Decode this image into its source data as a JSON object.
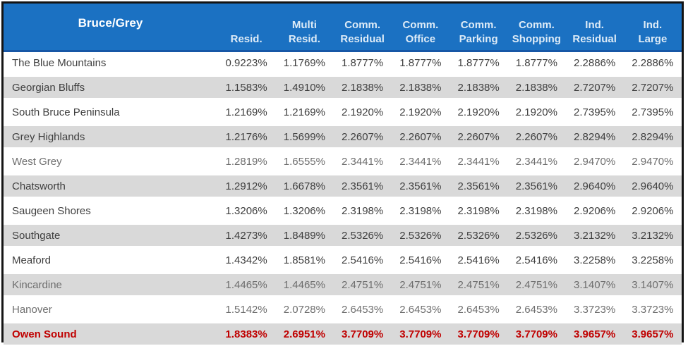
{
  "table": {
    "title": "Bruce/Grey",
    "columns": [
      "Resid.",
      "Multi\nResid.",
      "Comm.\nResidual",
      "Comm.\nOffice",
      "Comm.\nParking",
      "Comm.\nShopping",
      "Ind.\nResidual",
      "Ind.\nLarge"
    ],
    "rows": [
      {
        "name": "The Blue Mountains",
        "style": "normal",
        "values": [
          "0.9223%",
          "1.1769%",
          "1.8777%",
          "1.8777%",
          "1.8777%",
          "1.8777%",
          "2.2886%",
          "2.2886%"
        ]
      },
      {
        "name": "Georgian Bluffs",
        "style": "normal",
        "values": [
          "1.1583%",
          "1.4910%",
          "2.1838%",
          "2.1838%",
          "2.1838%",
          "2.1838%",
          "2.7207%",
          "2.7207%"
        ]
      },
      {
        "name": "South Bruce Peninsula",
        "style": "normal",
        "values": [
          "1.2169%",
          "1.2169%",
          "2.1920%",
          "2.1920%",
          "2.1920%",
          "2.1920%",
          "2.7395%",
          "2.7395%"
        ]
      },
      {
        "name": "Grey Highlands",
        "style": "normal",
        "values": [
          "1.2176%",
          "1.5699%",
          "2.2607%",
          "2.2607%",
          "2.2607%",
          "2.2607%",
          "2.8294%",
          "2.8294%"
        ]
      },
      {
        "name": "West Grey",
        "style": "muted",
        "values": [
          "1.2819%",
          "1.6555%",
          "2.3441%",
          "2.3441%",
          "2.3441%",
          "2.3441%",
          "2.9470%",
          "2.9470%"
        ]
      },
      {
        "name": "Chatsworth",
        "style": "normal",
        "values": [
          "1.2912%",
          "1.6678%",
          "2.3561%",
          "2.3561%",
          "2.3561%",
          "2.3561%",
          "2.9640%",
          "2.9640%"
        ]
      },
      {
        "name": "Saugeen Shores",
        "style": "normal",
        "values": [
          "1.3206%",
          "1.3206%",
          "2.3198%",
          "2.3198%",
          "2.3198%",
          "2.3198%",
          "2.9206%",
          "2.9206%"
        ]
      },
      {
        "name": "Southgate",
        "style": "normal",
        "values": [
          "1.4273%",
          "1.8489%",
          "2.5326%",
          "2.5326%",
          "2.5326%",
          "2.5326%",
          "3.2132%",
          "3.2132%"
        ]
      },
      {
        "name": "Meaford",
        "style": "normal",
        "values": [
          "1.4342%",
          "1.8581%",
          "2.5416%",
          "2.5416%",
          "2.5416%",
          "2.5416%",
          "3.2258%",
          "3.2258%"
        ]
      },
      {
        "name": "Kincardine",
        "style": "muted",
        "values": [
          "1.4465%",
          "1.4465%",
          "2.4751%",
          "2.4751%",
          "2.4751%",
          "2.4751%",
          "3.1407%",
          "3.1407%"
        ]
      },
      {
        "name": "Hanover",
        "style": "muted",
        "values": [
          "1.5142%",
          "2.0728%",
          "2.6453%",
          "2.6453%",
          "2.6453%",
          "2.6453%",
          "3.3723%",
          "3.3723%"
        ]
      },
      {
        "name": "Owen Sound",
        "style": "highlight",
        "values": [
          "1.8383%",
          "2.6951%",
          "3.7709%",
          "3.7709%",
          "3.7709%",
          "3.7709%",
          "3.9657%",
          "3.9657%"
        ]
      }
    ]
  },
  "colors": {
    "header_bg": "#1B71C2",
    "header_text": "#DDEBF7",
    "header_title_text": "#FFFFFF",
    "header_underline": "#1757A6",
    "stripe": "#D9D9D9",
    "row_text": "#3F3F3F",
    "muted_row_text": "#6E6E6E",
    "highlight_text": "#C00000",
    "border": "#141414"
  }
}
